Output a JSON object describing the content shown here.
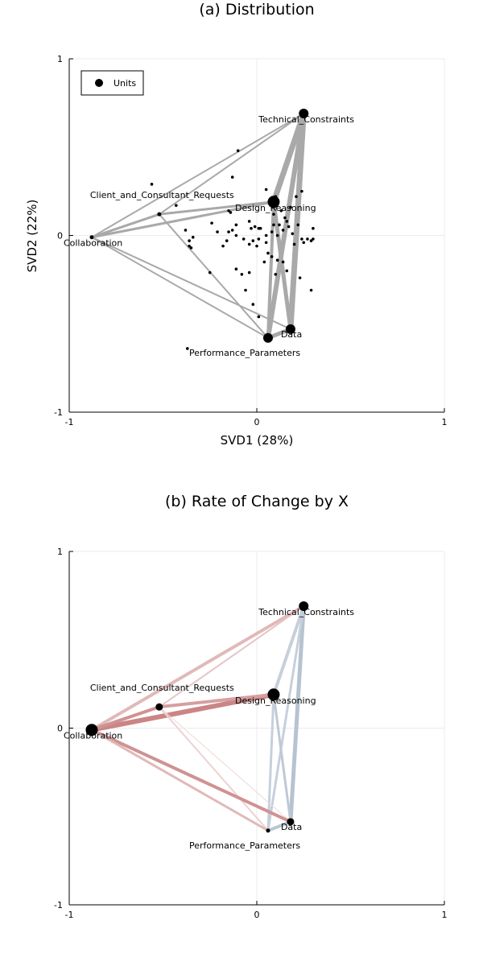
{
  "chart_data": [
    {
      "type": "scatter",
      "title": "(a) Distribution",
      "xlabel": "SVD1 (28%)",
      "ylabel": "SVD2 (22%)",
      "xlim": [
        -1,
        1
      ],
      "ylim": [
        -1,
        1
      ],
      "xticks": [
        "-1",
        "0",
        "1"
      ],
      "yticks": [
        "-1",
        "0",
        "1"
      ],
      "grid": true,
      "legend": {
        "position": "top-left",
        "entries": [
          "Units"
        ]
      },
      "edge_color": "#a9a9a9",
      "nodes": [
        {
          "label": "Technical_Constraints",
          "x": 0.25,
          "y": 0.69,
          "size": "medium"
        },
        {
          "label": "Design_Reasoning",
          "x": 0.09,
          "y": 0.19,
          "size": "large"
        },
        {
          "label": "Client_and_Consultant_Requests",
          "x": -0.52,
          "y": 0.12,
          "size": "tiny"
        },
        {
          "label": "Collaboration",
          "x": -0.88,
          "y": -0.01,
          "size": "tiny"
        },
        {
          "label": "Data",
          "x": 0.18,
          "y": -0.53,
          "size": "medium"
        },
        {
          "label": "Performance_Parameters",
          "x": 0.06,
          "y": -0.58,
          "size": "medium"
        }
      ],
      "edges": [
        {
          "from": "Technical_Constraints",
          "to": "Collaboration",
          "weight": 2
        },
        {
          "from": "Technical_Constraints",
          "to": "Client_and_Consultant_Requests",
          "weight": 2
        },
        {
          "from": "Technical_Constraints",
          "to": "Design_Reasoning",
          "weight": 7
        },
        {
          "from": "Technical_Constraints",
          "to": "Data",
          "weight": 7
        },
        {
          "from": "Technical_Constraints",
          "to": "Performance_Parameters",
          "weight": 6
        },
        {
          "from": "Design_Reasoning",
          "to": "Collaboration",
          "weight": 3
        },
        {
          "from": "Design_Reasoning",
          "to": "Client_and_Consultant_Requests",
          "weight": 3
        },
        {
          "from": "Design_Reasoning",
          "to": "Data",
          "weight": 5
        },
        {
          "from": "Design_Reasoning",
          "to": "Performance_Parameters",
          "weight": 4
        },
        {
          "from": "Client_and_Consultant_Requests",
          "to": "Collaboration",
          "weight": 3
        },
        {
          "from": "Client_and_Consultant_Requests",
          "to": "Performance_Parameters",
          "weight": 2
        },
        {
          "from": "Collaboration",
          "to": "Data",
          "weight": 2
        },
        {
          "from": "Collaboration",
          "to": "Performance_Parameters",
          "weight": 2
        },
        {
          "from": "Data",
          "to": "Performance_Parameters",
          "weight": 5
        }
      ],
      "units": [
        [
          -0.56,
          0.29
        ],
        [
          -0.1,
          0.48
        ],
        [
          -0.13,
          0.33
        ],
        [
          -0.43,
          0.17
        ],
        [
          -0.15,
          0.14
        ],
        [
          -0.14,
          0.13
        ],
        [
          -0.24,
          0.07
        ],
        [
          -0.21,
          0.02
        ],
        [
          -0.36,
          -0.03
        ],
        [
          -0.34,
          -0.01
        ],
        [
          -0.36,
          -0.06
        ],
        [
          -0.35,
          -0.07
        ],
        [
          -0.38,
          0.03
        ],
        [
          -0.18,
          -0.06
        ],
        [
          -0.16,
          -0.03
        ],
        [
          -0.15,
          0.02
        ],
        [
          -0.13,
          0.03
        ],
        [
          -0.11,
          0.06
        ],
        [
          -0.11,
          0.0
        ],
        [
          -0.07,
          -0.02
        ],
        [
          -0.04,
          0.08
        ],
        [
          -0.03,
          0.04
        ],
        [
          -0.04,
          -0.05
        ],
        [
          -0.02,
          -0.03
        ],
        [
          -0.01,
          0.05
        ],
        [
          0.0,
          -0.06
        ],
        [
          0.01,
          -0.02
        ],
        [
          0.02,
          0.04
        ],
        [
          0.05,
          -0.04
        ],
        [
          0.05,
          0.0
        ],
        [
          0.06,
          -0.1
        ],
        [
          0.08,
          0.02
        ],
        [
          0.09,
          0.06
        ],
        [
          0.09,
          0.12
        ],
        [
          0.1,
          0.22
        ],
        [
          0.11,
          0.0
        ],
        [
          0.12,
          0.06
        ],
        [
          0.13,
          0.14
        ],
        [
          0.14,
          0.03
        ],
        [
          0.15,
          0.1
        ],
        [
          0.16,
          0.08
        ],
        [
          0.17,
          0.05
        ],
        [
          0.18,
          0.16
        ],
        [
          0.19,
          0.01
        ],
        [
          0.2,
          -0.05
        ],
        [
          0.21,
          0.22
        ],
        [
          0.22,
          0.06
        ],
        [
          0.24,
          0.25
        ],
        [
          0.24,
          -0.02
        ],
        [
          0.25,
          -0.04
        ],
        [
          0.27,
          -0.02
        ],
        [
          0.29,
          -0.03
        ],
        [
          0.3,
          0.04
        ],
        [
          0.3,
          -0.02
        ],
        [
          0.05,
          0.26
        ],
        [
          -0.25,
          -0.21
        ],
        [
          -0.11,
          -0.19
        ],
        [
          -0.08,
          -0.22
        ],
        [
          -0.04,
          -0.21
        ],
        [
          0.04,
          -0.15
        ],
        [
          0.08,
          -0.12
        ],
        [
          0.11,
          -0.14
        ],
        [
          0.14,
          -0.15
        ],
        [
          0.16,
          -0.2
        ],
        [
          -0.06,
          -0.31
        ],
        [
          -0.02,
          -0.39
        ],
        [
          0.23,
          -0.24
        ],
        [
          0.29,
          -0.31
        ],
        [
          -0.37,
          -0.64
        ],
        [
          0.01,
          -0.46
        ],
        [
          0.1,
          -0.22
        ],
        [
          0.01,
          0.04
        ]
      ]
    },
    {
      "type": "scatter",
      "title": "(b) Rate of Change by X",
      "xlim": [
        -1,
        1
      ],
      "ylim": [
        -1,
        1
      ],
      "xticks": [
        "-1",
        "0",
        "1"
      ],
      "yticks": [
        "-1",
        "0",
        "1"
      ],
      "grid": true,
      "positive_color": "#c87f7f",
      "negative_color": "#aebccb",
      "nodes": [
        {
          "label": "Technical_Constraints",
          "x": 0.25,
          "y": 0.69,
          "size": "medium"
        },
        {
          "label": "Design_Reasoning",
          "x": 0.09,
          "y": 0.19,
          "size": "large"
        },
        {
          "label": "Client_and_Consultant_Requests",
          "x": -0.52,
          "y": 0.12,
          "size": "small"
        },
        {
          "label": "Collaboration",
          "x": -0.88,
          "y": -0.01,
          "size": "large"
        },
        {
          "label": "Data",
          "x": 0.18,
          "y": -0.53,
          "size": "small"
        },
        {
          "label": "Performance_Parameters",
          "x": 0.06,
          "y": -0.58,
          "size": "tiny"
        }
      ],
      "edges": [
        {
          "from": "Technical_Constraints",
          "to": "Collaboration",
          "sign": "positive",
          "weight": 4,
          "strength": 0.55
        },
        {
          "from": "Technical_Constraints",
          "to": "Client_and_Consultant_Requests",
          "sign": "positive",
          "weight": 2,
          "strength": 0.45
        },
        {
          "from": "Technical_Constraints",
          "to": "Design_Reasoning",
          "sign": "negative",
          "weight": 4,
          "strength": 0.7
        },
        {
          "from": "Technical_Constraints",
          "to": "Data",
          "sign": "negative",
          "weight": 5,
          "strength": 0.9
        },
        {
          "from": "Technical_Constraints",
          "to": "Performance_Parameters",
          "sign": "negative",
          "weight": 3,
          "strength": 0.7
        },
        {
          "from": "Design_Reasoning",
          "to": "Collaboration",
          "sign": "positive",
          "weight": 6,
          "strength": 0.95
        },
        {
          "from": "Design_Reasoning",
          "to": "Client_and_Consultant_Requests",
          "sign": "positive",
          "weight": 4,
          "strength": 0.75
        },
        {
          "from": "Design_Reasoning",
          "to": "Data",
          "sign": "negative",
          "weight": 3,
          "strength": 0.8
        },
        {
          "from": "Design_Reasoning",
          "to": "Performance_Parameters",
          "sign": "negative",
          "weight": 3,
          "strength": 0.7
        },
        {
          "from": "Client_and_Consultant_Requests",
          "to": "Collaboration",
          "sign": "positive",
          "weight": 4,
          "strength": 0.85
        },
        {
          "from": "Client_and_Consultant_Requests",
          "to": "Data",
          "sign": "positive",
          "weight": 1,
          "strength": 0.3
        },
        {
          "from": "Client_and_Consultant_Requests",
          "to": "Performance_Parameters",
          "sign": "positive",
          "weight": 2,
          "strength": 0.35
        },
        {
          "from": "Collaboration",
          "to": "Data",
          "sign": "positive",
          "weight": 4,
          "strength": 0.85
        },
        {
          "from": "Collaboration",
          "to": "Performance_Parameters",
          "sign": "positive",
          "weight": 3,
          "strength": 0.55
        },
        {
          "from": "Data",
          "to": "Performance_Parameters",
          "sign": "negative",
          "weight": 4,
          "strength": 0.85
        }
      ]
    }
  ]
}
